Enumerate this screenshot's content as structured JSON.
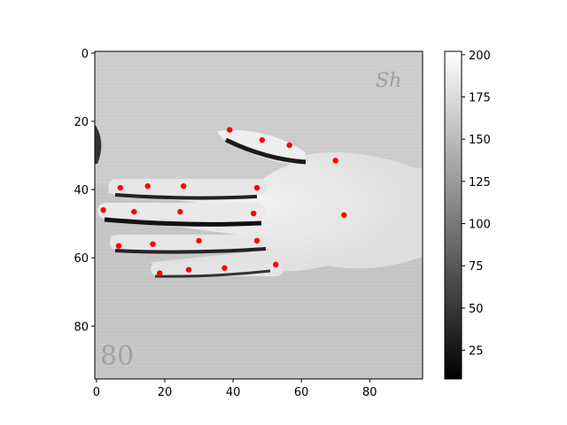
{
  "chart_data": {
    "type": "heatmap",
    "title": "",
    "xlabel": "",
    "ylabel": "",
    "image_size": [
      96,
      96
    ],
    "xlim": [
      -0.5,
      95.5
    ],
    "ylim": [
      95.5,
      -0.5
    ],
    "x_ticks": [
      0,
      20,
      40,
      60,
      80
    ],
    "y_ticks": [
      0,
      20,
      40,
      60,
      80
    ],
    "colormap": "gray",
    "colorbar": {
      "min": 8,
      "max": 202,
      "ticks": [
        25,
        50,
        75,
        100,
        125,
        150,
        175,
        200
      ]
    },
    "image_text": [
      "Sh",
      "80"
    ],
    "keypoint_color": "#ff0000",
    "series": [
      {
        "type": "scatter",
        "points": [
          [
            39,
            22.5
          ],
          [
            48.5,
            25.5
          ],
          [
            56.5,
            27
          ],
          [
            70,
            31.5
          ],
          [
            7,
            39.5
          ],
          [
            15,
            39
          ],
          [
            25.5,
            39
          ],
          [
            47,
            39.5
          ],
          [
            2,
            46
          ],
          [
            11,
            46.5
          ],
          [
            24.5,
            46.5
          ],
          [
            46,
            47
          ],
          [
            72.5,
            47.5
          ],
          [
            6.5,
            56.5
          ],
          [
            16.5,
            56
          ],
          [
            30,
            55
          ],
          [
            47,
            55
          ],
          [
            18.5,
            64.5
          ],
          [
            27,
            63.5
          ],
          [
            37.5,
            63
          ],
          [
            52.5,
            62
          ]
        ]
      }
    ]
  }
}
